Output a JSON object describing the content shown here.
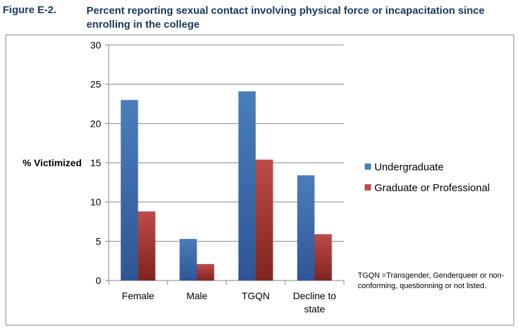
{
  "figure": {
    "label": "Figure E-2.",
    "title": "Percent reporting sexual contact involving physical force or incapacitation since enrolling in the college"
  },
  "footnote": "TGQN  =Transgender, Genderqueer or non-conforming, questionning or not listed.",
  "colors": {
    "undergraduate": "#4a7ebb",
    "graduate": "#be4b48",
    "grid": "#868686"
  },
  "chart_data": {
    "type": "bar",
    "title": "Percent reporting sexual contact involving physical force or incapacitation since enrolling in the college",
    "ylabel": "% Victimized",
    "xlabel": "",
    "categories": [
      "Female",
      "Male",
      "TGQN",
      "Decline to state"
    ],
    "series": [
      {
        "name": "Undergraduate",
        "values": [
          23.0,
          5.3,
          24.1,
          13.4
        ]
      },
      {
        "name": "Graduate or Professional",
        "values": [
          8.8,
          2.1,
          15.4,
          5.9
        ]
      }
    ],
    "ylim": [
      0,
      30
    ],
    "yticks": [
      0,
      5,
      10,
      15,
      20,
      25,
      30
    ],
    "grid": true,
    "legend_position": "right"
  }
}
